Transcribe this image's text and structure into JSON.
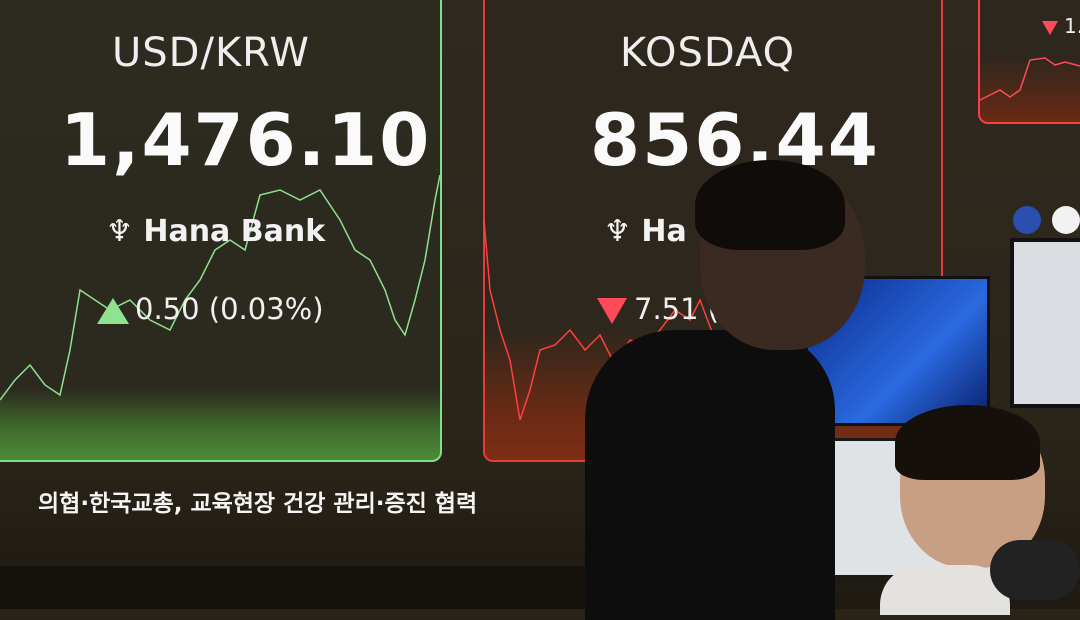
{
  "boards": [
    {
      "title": "USD/KRW",
      "value": "1,476.10",
      "brand": "Hana Bank",
      "change": "0.50 (0.03%)",
      "direction": "up",
      "color": "#7ee08a"
    },
    {
      "title": "KOSDAQ",
      "value": "856.44",
      "brand": "Ha",
      "change": "7.51 (",
      "direction": "down",
      "color": "#e83a3a"
    },
    {
      "title": "",
      "value": "",
      "brand": "",
      "change": "1.",
      "direction": "down",
      "color": "#ff3a45"
    }
  ],
  "headline": "의협·한국교총, 교육현장 건강 관리·증진 협력",
  "colors": {
    "up": "#8fe28f",
    "down": "#ff4a5a",
    "wall": "#2b2519"
  }
}
